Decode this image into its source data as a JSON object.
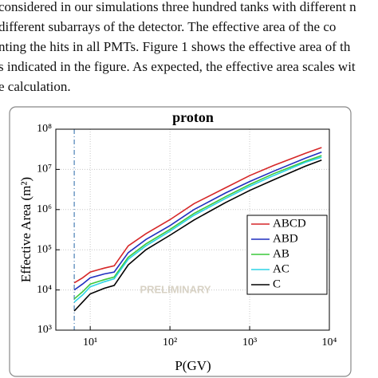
{
  "text": {
    "lines": [
      "considered in our simulations three hundred tanks with different n",
      "different subarrays of the detector. The effective area of the co",
      "nting the hits in all PMTs. Figure 1 shows the effective area of th",
      "s indicated in the figure. As expected, the effective area scales wit",
      "e calculation."
    ]
  },
  "chart_data": {
    "type": "line",
    "title": "proton",
    "x_label": "P(GV)",
    "y_label": "Effective Area (m²)",
    "annotation": "PRELIMINARY",
    "log_x": true,
    "log_y": true,
    "grid": true,
    "legend": "lower right",
    "vline": 6.3,
    "x": [
      6.3,
      8,
      10,
      15,
      20,
      30,
      50,
      100,
      200,
      500,
      1000,
      2000,
      5000,
      8000
    ],
    "series": [
      {
        "name": "ABCD",
        "color": "#d62728",
        "values": [
          15000,
          20000,
          28000,
          35000,
          40000,
          125000,
          250000,
          560000,
          1400000,
          3500000,
          7000000,
          12500000,
          25000000,
          35000000
        ]
      },
      {
        "name": "ABD",
        "color": "#1f2fbf",
        "values": [
          10000,
          14000,
          20000,
          25000,
          28000,
          85000,
          180000,
          400000,
          1000000,
          2600000,
          5000000,
          9000000,
          19000000,
          27000000
        ]
      },
      {
        "name": "AB",
        "color": "#3cc83c",
        "values": [
          6000,
          9000,
          14000,
          18000,
          21000,
          65000,
          140000,
          320000,
          800000,
          2100000,
          4200000,
          7800000,
          16000000,
          22000000
        ]
      },
      {
        "name": "AC",
        "color": "#2ed3e6",
        "values": [
          5000,
          7500,
          12000,
          16000,
          19000,
          58000,
          125000,
          290000,
          720000,
          1900000,
          3800000,
          7000000,
          15000000,
          20000000
        ]
      },
      {
        "name": "C",
        "color": "#000000",
        "values": [
          3000,
          5000,
          8000,
          11000,
          13000,
          42000,
          100000,
          230000,
          550000,
          1500000,
          3000000,
          5500000,
          12000000,
          17000000
        ]
      }
    ],
    "xlim": [
      3.7,
      10000
    ],
    "xticks": [
      {
        "value": 10,
        "label": "10¹"
      },
      {
        "value": 100,
        "label": "10²"
      },
      {
        "value": 1000,
        "label": "10³"
      },
      {
        "value": 10000,
        "label": "10⁴"
      }
    ],
    "ylim": [
      1000,
      100000000
    ],
    "yticks": [
      {
        "value": 1000,
        "label": "10³"
      },
      {
        "value": 10000,
        "label": "10⁴"
      },
      {
        "value": 100000,
        "label": "10⁵"
      },
      {
        "value": 1000000,
        "label": "10⁶"
      },
      {
        "value": 10000000,
        "label": "10⁷"
      },
      {
        "value": 100000000,
        "label": "10⁸"
      }
    ]
  }
}
